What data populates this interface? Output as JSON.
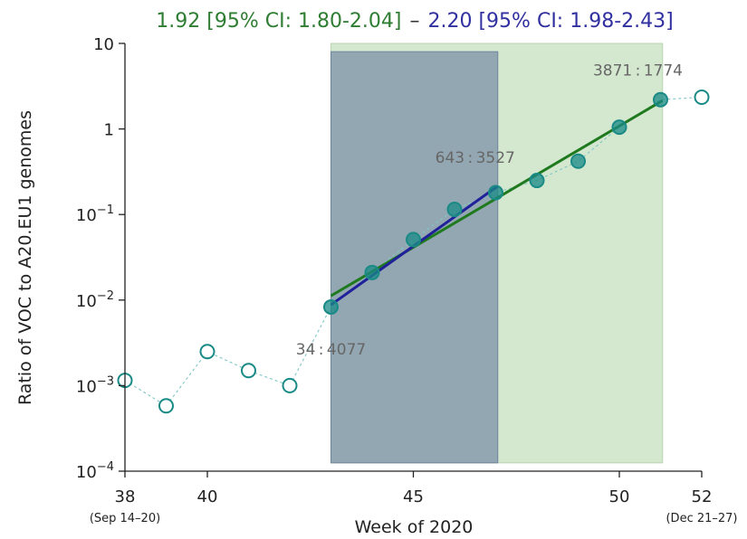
{
  "chart_data": {
    "type": "scatter",
    "title": {
      "green": "1.92 [95% CI: 1.80-2.04]",
      "dash": "–",
      "blue": "2.20 [95% CI: 1.98-2.43]"
    },
    "xlabel": "Week of 2020",
    "ylabel": "Ratio of VOC to A20.EU1 genomes",
    "y_scale": "log",
    "xlim": [
      38,
      52
    ],
    "ylim": [
      0.0001,
      10
    ],
    "x_ticks": [
      {
        "value": 38,
        "label": "38",
        "sublabel": "(Sep 14–20)"
      },
      {
        "value": 40,
        "label": "40",
        "sublabel": ""
      },
      {
        "value": 45,
        "label": "45",
        "sublabel": ""
      },
      {
        "value": 50,
        "label": "50",
        "sublabel": ""
      },
      {
        "value": 52,
        "label": "52",
        "sublabel": "(Dec 21–27)"
      }
    ],
    "y_ticks": [
      {
        "value": 0.0001,
        "base": "10",
        "exp": "−4"
      },
      {
        "value": 0.001,
        "base": "10",
        "exp": "−3"
      },
      {
        "value": 0.01,
        "base": "10",
        "exp": "−2"
      },
      {
        "value": 0.1,
        "base": "10",
        "exp": "−1"
      },
      {
        "value": 1,
        "base": "1",
        "exp": ""
      },
      {
        "value": 10,
        "base": "10",
        "exp": ""
      }
    ],
    "shaded_regions": [
      {
        "x": [
          43,
          51.05
        ],
        "y": [
          0.000125,
          10
        ],
        "color": "#d4e7cf"
      },
      {
        "x": [
          43,
          47.05
        ],
        "y": [
          0.000125,
          8
        ],
        "color": "#8498ab"
      }
    ],
    "series": [
      {
        "color": "#1a8a86",
        "filled": false,
        "x": [
          38,
          39,
          40,
          41,
          42,
          52
        ],
        "y": [
          0.00115,
          0.00058,
          0.0025,
          0.0015,
          0.001,
          2.35
        ]
      },
      {
        "color": "#1a8a86",
        "filled": true,
        "x": [
          43,
          44,
          45,
          46,
          47,
          48,
          49,
          50,
          51
        ],
        "y": [
          0.0083,
          0.021,
          0.051,
          0.115,
          0.18,
          0.25,
          0.42,
          1.05,
          2.2
        ]
      }
    ],
    "connector": {
      "x": [
        38,
        39,
        40,
        41,
        42,
        43,
        44,
        45,
        46,
        47,
        48,
        49,
        50,
        51,
        52
      ],
      "y": [
        0.00115,
        0.00058,
        0.0025,
        0.0015,
        0.001,
        0.0083,
        0.021,
        0.051,
        0.115,
        0.18,
        0.25,
        0.42,
        1.05,
        2.2,
        2.35
      ],
      "color": "#7fc7c4"
    },
    "fits": [
      {
        "color": "#1f7a1f",
        "x": [
          43,
          51.05
        ],
        "y": [
          0.0112,
          2.15
        ]
      },
      {
        "color": "#20209a",
        "x": [
          43,
          47.05
        ],
        "y": [
          0.0088,
          0.215
        ]
      }
    ],
    "annotations": [
      {
        "text": "34 : 4077",
        "x": 43,
        "y": 0.0023
      },
      {
        "text": "643 : 3527",
        "x": 46.5,
        "y": 0.4
      },
      {
        "text": "3871 : 1774",
        "x": 50.45,
        "y": 4.2
      }
    ]
  }
}
